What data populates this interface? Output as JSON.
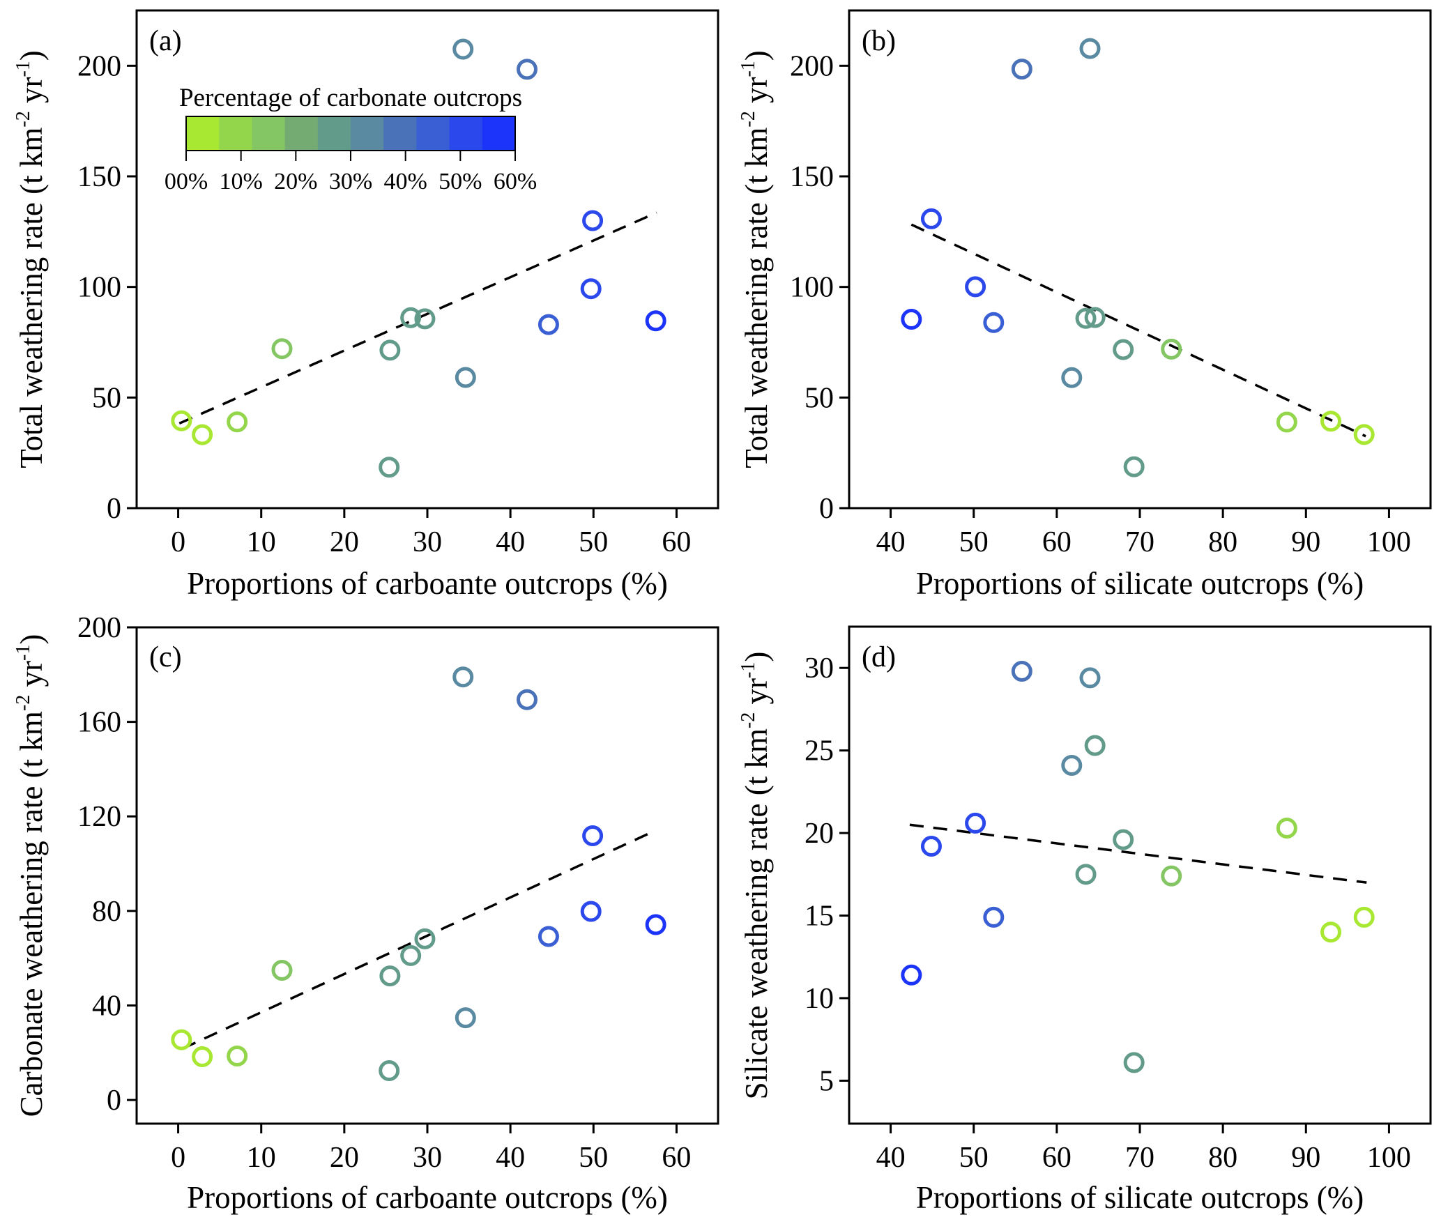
{
  "chart_data": [
    {
      "id": "a",
      "type": "scatter",
      "panel_label": "(a)",
      "xlabel": "Proportions of carboante outcrops (%)",
      "ylabel": {
        "main": "Total weathering rate (t km",
        "sup1": "-2",
        "mid": " yr",
        "sup2": "-1",
        "end": ")"
      },
      "xlim": [
        -5,
        65
      ],
      "ylim": [
        0,
        225
      ],
      "xticks": [
        0,
        10,
        20,
        30,
        40,
        50,
        60
      ],
      "yticks": [
        0,
        50,
        100,
        150,
        200
      ],
      "grid": false,
      "trendline": {
        "style": "dashed",
        "x": [
          0.14,
          57.6
        ],
        "y": [
          38.3,
          133.6
        ]
      },
      "points": [
        {
          "x": 0.4,
          "y": 39.5,
          "color": "#a8e832"
        },
        {
          "x": 2.9,
          "y": 33.2,
          "color": "#a8e832"
        },
        {
          "x": 7.1,
          "y": 39.0,
          "color": "#93d64b"
        },
        {
          "x": 12.5,
          "y": 72.1,
          "color": "#84c564"
        },
        {
          "x": 25.5,
          "y": 71.4,
          "color": "#639b8b"
        },
        {
          "x": 25.4,
          "y": 18.5,
          "color": "#639b8b"
        },
        {
          "x": 28.0,
          "y": 86.1,
          "color": "#639b8b"
        },
        {
          "x": 29.7,
          "y": 85.6,
          "color": "#639b8b"
        },
        {
          "x": 34.3,
          "y": 207.5,
          "color": "#5a8aa2"
        },
        {
          "x": 34.6,
          "y": 59.1,
          "color": "#5a8aa2"
        },
        {
          "x": 42.0,
          "y": 198.4,
          "color": "#4a72b9"
        },
        {
          "x": 44.6,
          "y": 83.0,
          "color": "#3a5fd4"
        },
        {
          "x": 49.9,
          "y": 130.0,
          "color": "#2b48ec"
        },
        {
          "x": 49.7,
          "y": 99.2,
          "color": "#2b48ec"
        },
        {
          "x": 57.5,
          "y": 84.7,
          "color": "#1c34fa"
        }
      ],
      "colorbar": {
        "title": "Percentage of carbonate outcrops",
        "labels": [
          "00%",
          "10%",
          "20%",
          "30%",
          "40%",
          "50%",
          "60%"
        ],
        "range": [
          0,
          60
        ],
        "colors": [
          "#a8e832",
          "#93d64b",
          "#84c564",
          "#74ab72",
          "#639b8b",
          "#5a8aa2",
          "#4a72b9",
          "#3a5fd4",
          "#2b48ec",
          "#1c34fa"
        ],
        "placement": "top-left"
      }
    },
    {
      "id": "b",
      "type": "scatter",
      "panel_label": "(b)",
      "xlabel": "Proportions of silicate outcrops (%)",
      "ylabel": {
        "main": "Total weathering rate (t km",
        "sup1": "-2",
        "mid": " yr",
        "sup2": "-1",
        "end": ")"
      },
      "xlim": [
        35,
        105
      ],
      "ylim": [
        0,
        225
      ],
      "xticks": [
        40,
        50,
        60,
        70,
        80,
        90,
        100
      ],
      "yticks": [
        0,
        50,
        100,
        150,
        200
      ],
      "grid": false,
      "trendline": {
        "style": "dashed",
        "x": [
          42.5,
          97.2
        ],
        "y": [
          128.2,
          32.5
        ]
      },
      "points": [
        {
          "x": 42.5,
          "y": 85.4,
          "color": "#1c34fa"
        },
        {
          "x": 44.9,
          "y": 130.8,
          "color": "#2b48ec"
        },
        {
          "x": 50.2,
          "y": 100.1,
          "color": "#2b48ec"
        },
        {
          "x": 52.4,
          "y": 83.9,
          "color": "#3a5fd4"
        },
        {
          "x": 55.8,
          "y": 198.5,
          "color": "#4a72b9"
        },
        {
          "x": 61.8,
          "y": 59.0,
          "color": "#5a8aa2"
        },
        {
          "x": 63.5,
          "y": 85.8,
          "color": "#639b8b"
        },
        {
          "x": 64.0,
          "y": 207.8,
          "color": "#5a8aa2"
        },
        {
          "x": 64.6,
          "y": 86.2,
          "color": "#639b8b"
        },
        {
          "x": 68.0,
          "y": 71.7,
          "color": "#639b8b"
        },
        {
          "x": 69.3,
          "y": 18.7,
          "color": "#639b8b"
        },
        {
          "x": 73.8,
          "y": 71.9,
          "color": "#84c564"
        },
        {
          "x": 87.7,
          "y": 38.9,
          "color": "#93d64b"
        },
        {
          "x": 93.0,
          "y": 39.3,
          "color": "#a8e832"
        },
        {
          "x": 97.0,
          "y": 33.3,
          "color": "#a8e832"
        }
      ]
    },
    {
      "id": "c",
      "type": "scatter",
      "panel_label": "(c)",
      "xlabel": "Proportions of carboante outcrops (%)",
      "ylabel": {
        "main": "Carbonate weathering rate  (t km",
        "sup1": "-2",
        "mid": " yr",
        "sup2": "-1",
        "end": ")"
      },
      "xlim": [
        -5,
        65
      ],
      "ylim": [
        -10,
        200
      ],
      "xticks": [
        0,
        10,
        20,
        30,
        40,
        50,
        60
      ],
      "yticks": [
        0,
        40,
        80,
        120,
        160,
        200
      ],
      "grid": false,
      "trendline": {
        "style": "dashed",
        "x": [
          0.56,
          57.5
        ],
        "y": [
          21.8,
          114.1
        ]
      },
      "points": [
        {
          "x": 0.4,
          "y": 25.5,
          "color": "#a8e832"
        },
        {
          "x": 2.9,
          "y": 18.3,
          "color": "#a8e832"
        },
        {
          "x": 7.1,
          "y": 18.6,
          "color": "#93d64b"
        },
        {
          "x": 12.5,
          "y": 54.9,
          "color": "#84c564"
        },
        {
          "x": 25.5,
          "y": 52.5,
          "color": "#639b8b"
        },
        {
          "x": 25.4,
          "y": 12.4,
          "color": "#639b8b"
        },
        {
          "x": 28.0,
          "y": 61.1,
          "color": "#639b8b"
        },
        {
          "x": 29.7,
          "y": 68.2,
          "color": "#639b8b"
        },
        {
          "x": 34.3,
          "y": 179.0,
          "color": "#5a8aa2"
        },
        {
          "x": 34.6,
          "y": 34.8,
          "color": "#5a8aa2"
        },
        {
          "x": 42.0,
          "y": 169.4,
          "color": "#4a72b9"
        },
        {
          "x": 44.6,
          "y": 69.2,
          "color": "#3a5fd4"
        },
        {
          "x": 49.9,
          "y": 111.8,
          "color": "#2b48ec"
        },
        {
          "x": 49.7,
          "y": 79.8,
          "color": "#2b48ec"
        },
        {
          "x": 57.5,
          "y": 74.2,
          "color": "#1c34fa"
        }
      ]
    },
    {
      "id": "d",
      "type": "scatter",
      "panel_label": "(d)",
      "xlabel": "Proportions of silicate outcrops (%)",
      "ylabel": {
        "main": "Silicate weathering rate (t km",
        "sup1": "-2",
        "mid": " yr",
        "sup2": "-1",
        "end": ")"
      },
      "xlim": [
        35,
        105
      ],
      "ylim": [
        2.4,
        32.5
      ],
      "xticks": [
        40,
        50,
        60,
        70,
        80,
        90,
        100
      ],
      "yticks": [
        5,
        10,
        15,
        20,
        25,
        30
      ],
      "grid": false,
      "trendline": {
        "style": "dashed",
        "x": [
          42.3,
          97.3
        ],
        "y": [
          20.5,
          17.0
        ]
      },
      "points": [
        {
          "x": 42.5,
          "y": 11.4,
          "color": "#1c34fa"
        },
        {
          "x": 44.9,
          "y": 19.2,
          "color": "#2b48ec"
        },
        {
          "x": 50.2,
          "y": 20.6,
          "color": "#2b48ec"
        },
        {
          "x": 52.4,
          "y": 14.9,
          "color": "#3a5fd4"
        },
        {
          "x": 55.8,
          "y": 29.8,
          "color": "#4a72b9"
        },
        {
          "x": 61.8,
          "y": 24.1,
          "color": "#5a8aa2"
        },
        {
          "x": 63.5,
          "y": 17.5,
          "color": "#639b8b"
        },
        {
          "x": 64.0,
          "y": 29.4,
          "color": "#5a8aa2"
        },
        {
          "x": 64.6,
          "y": 25.3,
          "color": "#639b8b"
        },
        {
          "x": 68.0,
          "y": 19.6,
          "color": "#639b8b"
        },
        {
          "x": 69.3,
          "y": 6.1,
          "color": "#639b8b"
        },
        {
          "x": 73.8,
          "y": 17.4,
          "color": "#84c564"
        },
        {
          "x": 87.7,
          "y": 20.3,
          "color": "#93d64b"
        },
        {
          "x": 93.0,
          "y": 14.0,
          "color": "#a8e832"
        },
        {
          "x": 97.0,
          "y": 14.9,
          "color": "#a8e832"
        }
      ]
    }
  ]
}
